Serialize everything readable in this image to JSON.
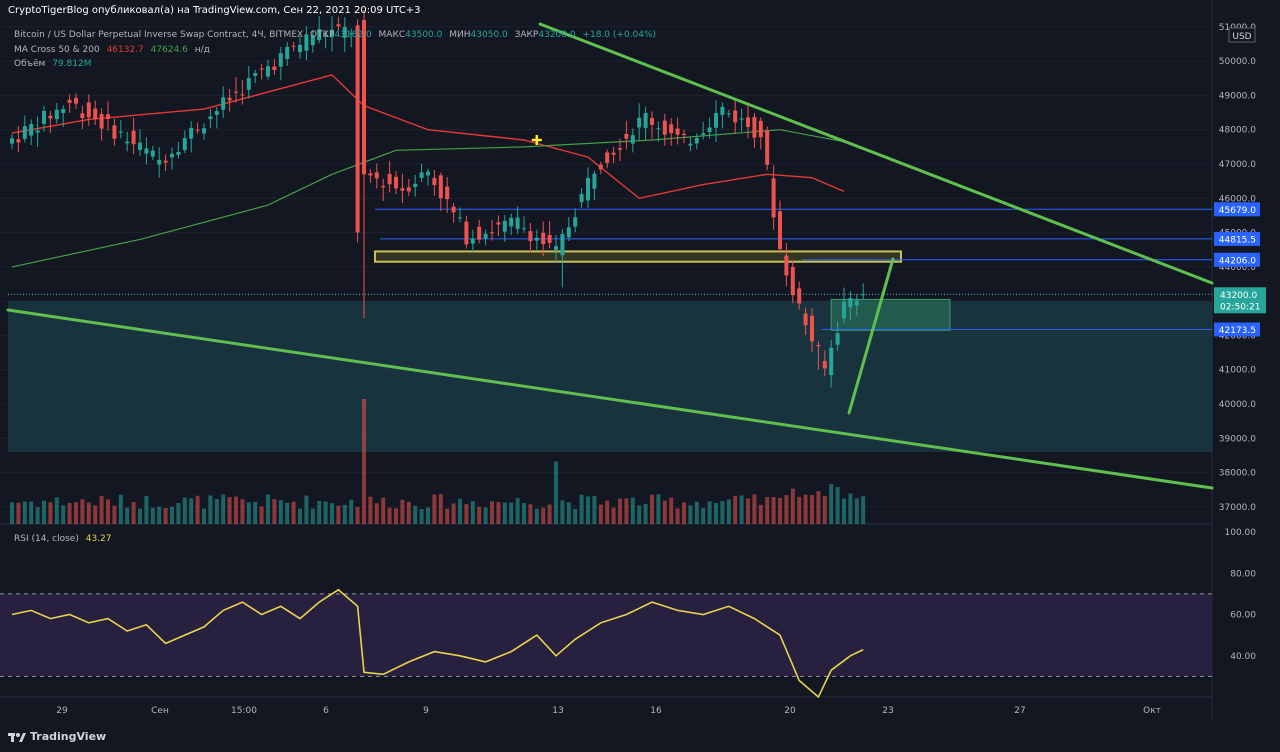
{
  "header": {
    "published": "CryptoTigerBlog опубликовал(а) на TradingView.com, Сен 22, 2021 20:09 UTC+3",
    "symbol": "Bitcoin / US Dollar Perpetual Inverse Swap Contract, 4Ч, BITMEX",
    "otkr_label": "ОТКР",
    "otkr": "43182.0",
    "maks_label": "МАКС",
    "maks": "43500.0",
    "min_label": "МИН",
    "min": "43050.0",
    "zakr_label": "ЗАКР",
    "zakr": "43200.0",
    "change": "+18.0 (+0.04%)",
    "ma_label": "MA Cross 50 & 200",
    "ma50": "46132.7",
    "ma200": "47624.6",
    "ma_na": "н/д",
    "volume_label": "Объём",
    "volume": "79.812M"
  },
  "rsi_panel": {
    "label": "RSI (14, close)",
    "value": "43.27"
  },
  "footer": {
    "brand": "TradingView"
  },
  "colors": {
    "background": "#131722",
    "up": "#26a69a",
    "down": "#ef5350",
    "ma50": "#e53935",
    "ma200": "#43a047",
    "trendline": "#5fbf4f",
    "rsi_line": "#e8d44d",
    "rsi_band": "#2a2142",
    "zone": "#1d4a55",
    "level": "#2962ff",
    "yellow_box": "#c9c155"
  },
  "chart_data": {
    "type": "candlestick",
    "main_yaxis": {
      "min": 36500,
      "max": 51200,
      "ticks": [
        "51000.0",
        "50000.0",
        "49000.0",
        "48000.0",
        "47000.0",
        "46000.0",
        "45000.0",
        "44000.0",
        "43000.0",
        "42000.0",
        "41000.0",
        "40000.0",
        "39000.0",
        "38000.0",
        "37000.0"
      ]
    },
    "rsi_yaxis": {
      "min": 20,
      "max": 100,
      "ticks": [
        "100.00",
        "80.00",
        "60.00",
        "40.00"
      ],
      "bands": [
        30,
        70
      ]
    },
    "currency": "USD",
    "xaxis_labels": [
      "29",
      "Сен",
      "15:00",
      "6",
      "9",
      "13",
      "16",
      "20",
      "23",
      "27",
      "Окт"
    ],
    "price_levels": [
      {
        "value": 45679.0,
        "label": "45679.0"
      },
      {
        "value": 44815.5,
        "label": "44815.5"
      },
      {
        "value": 44206.0,
        "label": "44206.0"
      },
      {
        "value": 42173.5,
        "label": "42173.5"
      }
    ],
    "last_price": {
      "value": 43200.0,
      "label": "43200.0",
      "countdown": "02:50:21"
    },
    "zone": {
      "top": 43000,
      "bottom": 38600
    },
    "yellow_box": {
      "top": 44450,
      "bottom": 44150
    },
    "target_box": {
      "top": 43050,
      "bottom": 42150
    },
    "anchors": [
      {
        "t": 0,
        "p": 47600
      },
      {
        "t": 10,
        "p": 48800
      },
      {
        "t": 16,
        "p": 48100
      },
      {
        "t": 24,
        "p": 47100
      },
      {
        "t": 30,
        "p": 48100
      },
      {
        "t": 40,
        "p": 49700
      },
      {
        "t": 48,
        "p": 50800
      },
      {
        "t": 54,
        "p": 50900
      },
      {
        "t": 55,
        "p": 44900
      },
      {
        "t": 56,
        "p": 46700
      },
      {
        "t": 62,
        "p": 46300
      },
      {
        "t": 66,
        "p": 46800
      },
      {
        "t": 72,
        "p": 44900
      },
      {
        "t": 80,
        "p": 45300
      },
      {
        "t": 86,
        "p": 44400
      },
      {
        "t": 92,
        "p": 46900
      },
      {
        "t": 100,
        "p": 48400
      },
      {
        "t": 106,
        "p": 47600
      },
      {
        "t": 112,
        "p": 48600
      },
      {
        "t": 118,
        "p": 47900
      },
      {
        "t": 121,
        "p": 44500
      },
      {
        "t": 124,
        "p": 42800
      },
      {
        "t": 128,
        "p": 41000
      },
      {
        "t": 131,
        "p": 42900
      },
      {
        "t": 133,
        "p": 43200
      }
    ],
    "ma50": {
      "name": "MA 50",
      "points": [
        [
          0,
          47900
        ],
        [
          12,
          48300
        ],
        [
          30,
          48600
        ],
        [
          50,
          49600
        ],
        [
          55,
          48700
        ],
        [
          65,
          48000
        ],
        [
          80,
          47700
        ],
        [
          90,
          47200
        ],
        [
          98,
          46000
        ],
        [
          108,
          46400
        ],
        [
          118,
          46700
        ],
        [
          125,
          46600
        ],
        [
          130,
          46200
        ]
      ]
    },
    "ma200": {
      "name": "MA 200",
      "points": [
        [
          0,
          44000
        ],
        [
          20,
          44800
        ],
        [
          40,
          45800
        ],
        [
          50,
          46700
        ],
        [
          60,
          47400
        ],
        [
          80,
          47500
        ],
        [
          100,
          47700
        ],
        [
          120,
          48000
        ],
        [
          130,
          47650
        ]
      ]
    },
    "trendlines": [
      {
        "from": [
          540,
          24
        ],
        "to": [
          1212,
          283
        ]
      },
      {
        "from": [
          8,
          310
        ],
        "to": [
          1212,
          488
        ]
      },
      {
        "from": [
          849,
          413
        ],
        "to": [
          893,
          259
        ]
      }
    ],
    "marker": {
      "t": 82,
      "p": 47700
    },
    "volume_spikes": [
      {
        "t": 55,
        "v": 1.0
      },
      {
        "t": 85,
        "v": 0.5
      },
      {
        "t": 128,
        "v": 0.34
      }
    ],
    "rsi": [
      [
        0,
        60
      ],
      [
        3,
        62
      ],
      [
        6,
        58
      ],
      [
        9,
        60
      ],
      [
        12,
        56
      ],
      [
        15,
        58
      ],
      [
        18,
        52
      ],
      [
        21,
        55
      ],
      [
        24,
        46
      ],
      [
        27,
        50
      ],
      [
        30,
        54
      ],
      [
        33,
        62
      ],
      [
        36,
        66
      ],
      [
        39,
        60
      ],
      [
        42,
        64
      ],
      [
        45,
        58
      ],
      [
        48,
        66
      ],
      [
        51,
        72
      ],
      [
        54,
        64
      ],
      [
        55,
        32
      ],
      [
        58,
        31
      ],
      [
        62,
        37
      ],
      [
        66,
        42
      ],
      [
        70,
        40
      ],
      [
        74,
        37
      ],
      [
        78,
        42
      ],
      [
        82,
        50
      ],
      [
        85,
        40
      ],
      [
        88,
        48
      ],
      [
        92,
        56
      ],
      [
        96,
        60
      ],
      [
        100,
        66
      ],
      [
        104,
        62
      ],
      [
        108,
        60
      ],
      [
        112,
        64
      ],
      [
        116,
        58
      ],
      [
        120,
        50
      ],
      [
        123,
        28
      ],
      [
        126,
        20
      ],
      [
        128,
        33
      ],
      [
        131,
        40
      ],
      [
        133,
        43
      ]
    ]
  }
}
